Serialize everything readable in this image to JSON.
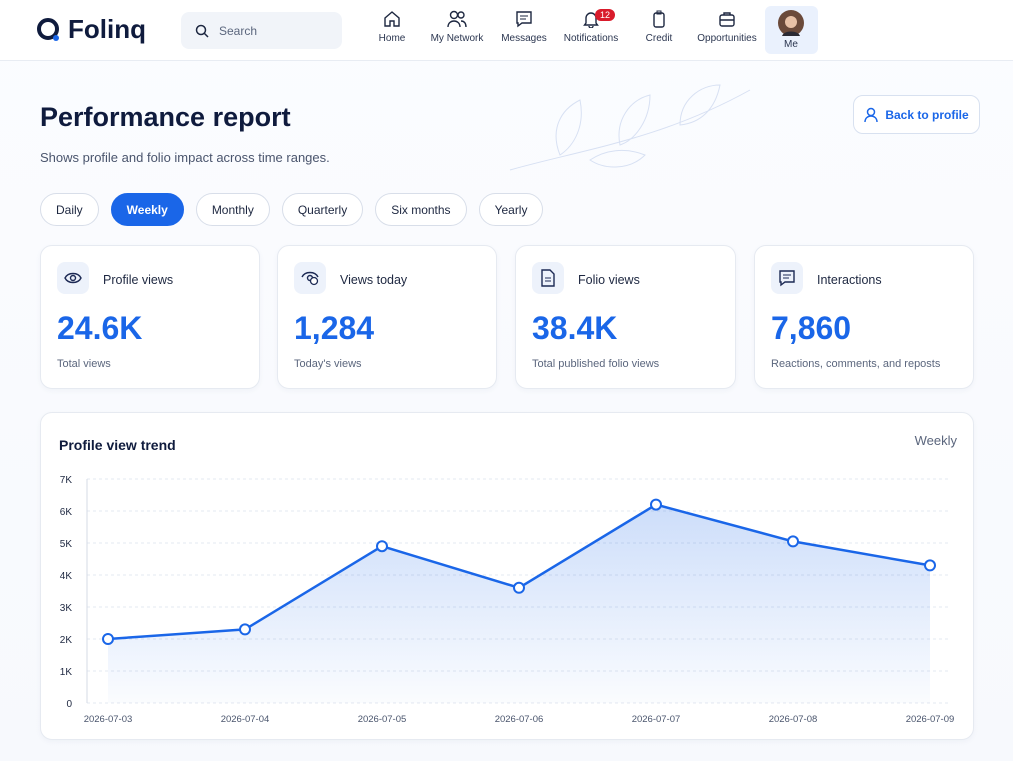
{
  "nav": {
    "logo": "Folinq",
    "search": "Search",
    "items": [
      "Home",
      "My Network",
      "Messages",
      "Notifications",
      "Credit",
      "Opportunities",
      "Me"
    ],
    "notification_count": 12
  },
  "header": {
    "title": "Performance report",
    "subtitle": "Shows profile and folio impact across time ranges.",
    "back_button": "Back to profile"
  },
  "tabs": {
    "items": [
      "Daily",
      "Weekly",
      "Monthly",
      "Quarterly",
      "Six months",
      "Yearly"
    ],
    "active": 1
  },
  "stats": [
    {
      "label": "Profile views",
      "value": "24.6K",
      "caption": "Total views"
    },
    {
      "label": "Views today",
      "value": "1,284",
      "caption": "Today's views"
    },
    {
      "label": "Folio views",
      "value": "38.4K",
      "caption": "Total published folio views"
    },
    {
      "label": "Interactions",
      "value": "7,860",
      "caption": "Reactions, comments, and reposts"
    }
  ],
  "chart_data": {
    "type": "line",
    "title": "Profile view trend",
    "range_label": "Weekly",
    "x": [
      "2026-07-03",
      "2026-07-04",
      "2026-07-05",
      "2026-07-06",
      "2026-07-07",
      "2026-07-08",
      "2026-07-09"
    ],
    "values": [
      2000,
      2300,
      4900,
      3600,
      6200,
      5050,
      4300
    ],
    "color": "#1a66e8",
    "ylim": [
      0,
      7000
    ],
    "yticks": [
      0,
      {
        "value": 1000,
        "label": "1K"
      },
      {
        "value": 2000,
        "label": "2K"
      },
      {
        "value": 3000,
        "label": "3K"
      },
      {
        "value": 4000,
        "label": "4K"
      },
      {
        "value": 5000,
        "label": "5K"
      },
      {
        "value": 6000,
        "label": "6K"
      },
      {
        "value": 7000,
        "label": "7K"
      }
    ],
    "grid": true
  }
}
